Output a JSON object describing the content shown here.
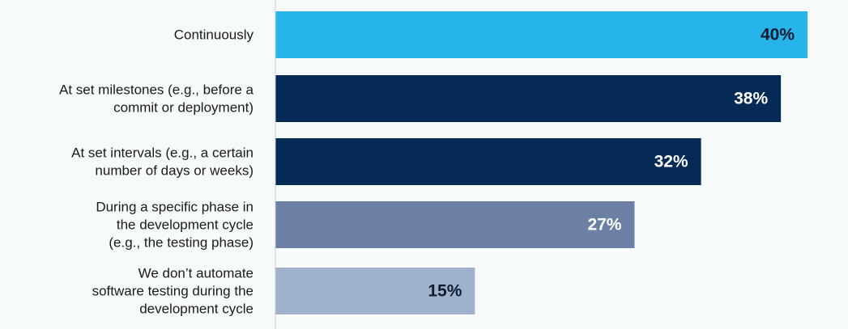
{
  "chart_data": {
    "type": "bar",
    "orientation": "horizontal",
    "categories": [
      "Continuously",
      "At set milestones (e.g., before a commit or deployment)",
      "At set intervals (e.g., a certain number of days or weeks)",
      "During a specific phase in the development cycle (e.g., the testing phase)",
      "We don’t automate software testing during the development cycle"
    ],
    "category_lines": [
      [
        "Continuously"
      ],
      [
        "At set milestones (e.g., before a",
        "commit or deployment)"
      ],
      [
        "At set intervals (e.g., a certain",
        "number of days or weeks)"
      ],
      [
        "During a specific phase in",
        "the development cycle",
        "(e.g., the testing phase)"
      ],
      [
        "We don’t automate",
        "software testing during the",
        "development cycle"
      ]
    ],
    "values": [
      40,
      38,
      32,
      27,
      15
    ],
    "value_labels": [
      "40%",
      "38%",
      "32%",
      "27%",
      "15%"
    ],
    "bar_colors": [
      "#27b4e8",
      "#062a56",
      "#062a56",
      "#6c7fa5",
      "#a1b2cc"
    ],
    "value_label_colors": [
      "#0d1b33",
      "#ffffff",
      "#ffffff",
      "#ffffff",
      "#0d1b33"
    ],
    "xlim": [
      0,
      40
    ],
    "grid": false,
    "legend": "none"
  },
  "colors": {
    "background": "#f6fafa",
    "axis_line": "#c8cfd6",
    "label_text": "#1b1b1b"
  }
}
